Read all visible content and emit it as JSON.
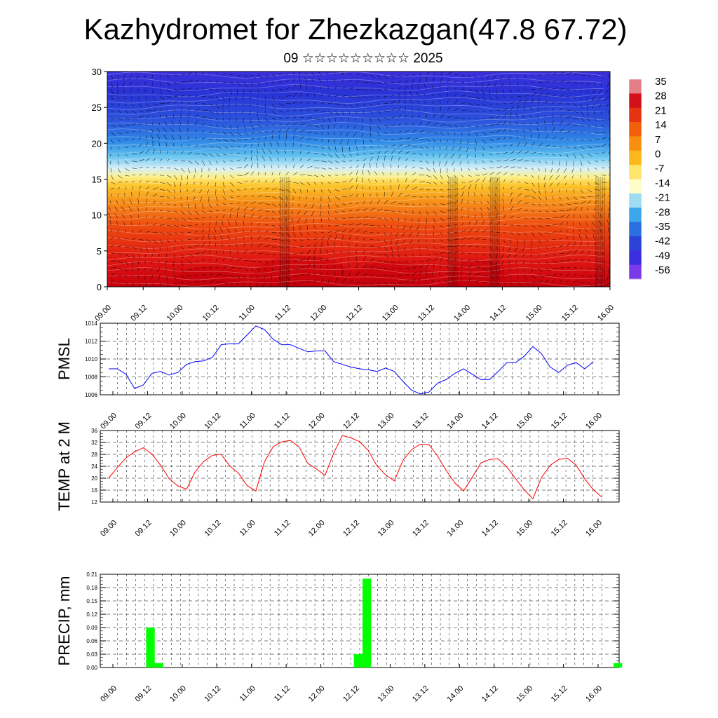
{
  "title": "Kazhydromet for Zhezkazgan(47.8 67.72)",
  "subtitle": "09 ☆☆☆☆☆☆☆☆☆ 2025",
  "time_labels": [
    "09.00",
    "09.12",
    "10.00",
    "10.12",
    "11.00",
    "11.12",
    "12.00",
    "12.12",
    "13.00",
    "13.12",
    "14.00",
    "14.12",
    "15.00",
    "15.12",
    "16.00"
  ],
  "chart_data": [
    {
      "type": "heatmap",
      "name": "cross-section",
      "ylim": [
        0,
        30
      ],
      "yticks": [
        0,
        5,
        10,
        15,
        20,
        25,
        30
      ],
      "x": [
        "09.00",
        "09.12",
        "10.00",
        "10.12",
        "11.00",
        "11.12",
        "12.00",
        "12.12",
        "13.00",
        "13.12",
        "14.00",
        "14.12",
        "15.00",
        "15.12",
        "16.00"
      ],
      "colorbar_labels": [
        "35",
        "28",
        "21",
        "14",
        "7",
        "0",
        "-7",
        "-14",
        "-21",
        "-28",
        "-35",
        "-42",
        "-49",
        "-56"
      ],
      "colorbar_colors": [
        "#e57f87",
        "#d4111b",
        "#e63312",
        "#f2600c",
        "#f88f10",
        "#fbb81d",
        "#fde46a",
        "#fefcc8",
        "#9fdcf2",
        "#3aa8ea",
        "#2b6fe0",
        "#2b43d8",
        "#3b2fe0",
        "#7a3ae8"
      ]
    },
    {
      "type": "line",
      "name": "pmsl",
      "ylabel": "PMSL",
      "ylim": [
        1006,
        1014
      ],
      "yticks": [
        1006,
        1008,
        1010,
        1012,
        1014
      ],
      "series": [
        {
          "color": "#0000ff",
          "values": [
            1008.9,
            1008.9,
            1008.3,
            1006.7,
            1007.1,
            1008.4,
            1008.6,
            1008.2,
            1008.5,
            1009.4,
            1009.7,
            1009.8,
            1010.2,
            1011.6,
            1011.7,
            1011.7,
            1012.7,
            1013.7,
            1013.3,
            1012.2,
            1011.6,
            1011.6,
            1011.2,
            1010.8,
            1010.9,
            1010.9,
            1009.7,
            1009.4,
            1009.1,
            1008.9,
            1008.8,
            1008.6,
            1009.0,
            1008.6,
            1007.5,
            1006.5,
            1006.1,
            1006.3,
            1007.3,
            1007.7,
            1008.4,
            1008.9,
            1008.3,
            1007.7,
            1007.7,
            1008.6,
            1009.6,
            1009.6,
            1010.3,
            1011.4,
            1010.6,
            1009.1,
            1008.5,
            1009.3,
            1009.6,
            1008.9,
            1009.7
          ]
        }
      ]
    },
    {
      "type": "line",
      "name": "temp",
      "ylabel": "TEMP at 2 M",
      "ylim": [
        12,
        36
      ],
      "yticks": [
        12,
        16,
        20,
        24,
        28,
        32,
        36
      ],
      "series": [
        {
          "color": "#ff0000",
          "values": [
            20.0,
            23.6,
            26.8,
            28.9,
            30.2,
            28.1,
            24.3,
            19.8,
            17.4,
            16.3,
            22.2,
            25.7,
            27.7,
            28.0,
            24.1,
            21.7,
            17.5,
            15.7,
            25.5,
            30.6,
            32.2,
            32.7,
            30.5,
            25.0,
            23.1,
            21.0,
            28.5,
            34.3,
            33.5,
            32.2,
            29.3,
            24.1,
            21.1,
            19.1,
            26.0,
            29.6,
            31.4,
            31.3,
            27.4,
            22.6,
            18.4,
            15.7,
            20.3,
            25.1,
            26.3,
            26.5,
            23.8,
            19.9,
            16.1,
            13.1,
            20.2,
            24.3,
            26.3,
            26.7,
            24.4,
            19.8,
            16.1,
            13.6
          ]
        }
      ]
    },
    {
      "type": "bar",
      "name": "precip",
      "ylabel": "PRECIP, mm",
      "ylim": [
        0,
        0.21
      ],
      "ytick_labels": [
        "0.00",
        "0.03",
        "0.06",
        "0.09",
        "0.12",
        "0.15",
        "0.18",
        "0.21"
      ],
      "color": "#00ff00",
      "bars": [
        {
          "t": 4.5,
          "value": 0.09
        },
        {
          "t": 5.5,
          "value": 0.01
        },
        {
          "t": 28.5,
          "value": 0.03
        },
        {
          "t": 29.5,
          "value": 0.2
        },
        {
          "t": 58.5,
          "value": 0.01
        }
      ]
    }
  ]
}
